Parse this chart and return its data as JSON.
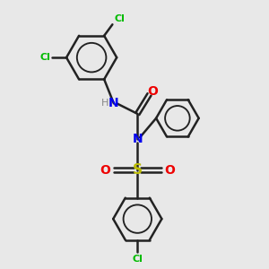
{
  "bg_color": "#e8e8e8",
  "bond_color": "#222222",
  "cl_color": "#00bb00",
  "n_color": "#0000ee",
  "o_color": "#ee0000",
  "s_color": "#bbbb00",
  "h_color": "#888888",
  "lw": 1.8,
  "figsize": [
    3.0,
    3.0
  ],
  "dpi": 100,
  "xlim": [
    -2.5,
    3.8
  ],
  "ylim": [
    -4.5,
    4.5
  ]
}
